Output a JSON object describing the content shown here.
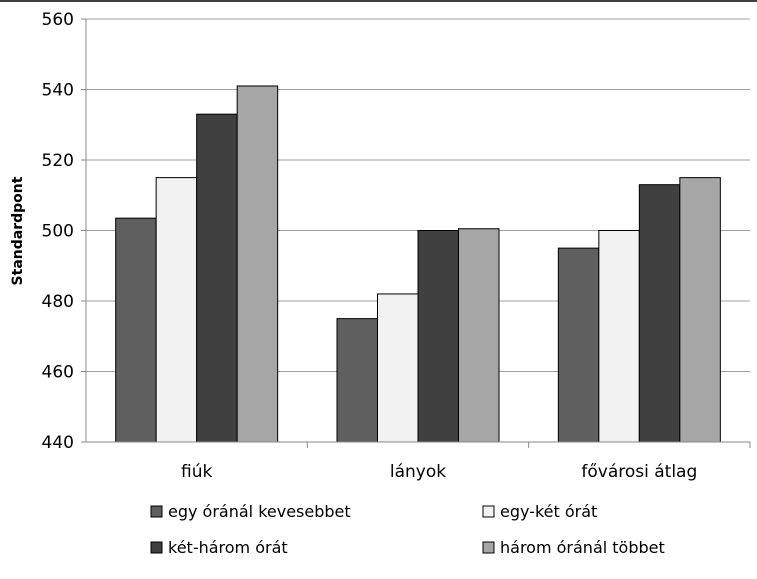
{
  "chart_data": {
    "type": "bar",
    "title": "",
    "xlabel": "",
    "ylabel": "Standardpont",
    "ylim": [
      440,
      560
    ],
    "yticks": [
      440,
      460,
      480,
      500,
      520,
      540,
      560
    ],
    "grid": true,
    "legend_position": "bottom",
    "categories": [
      "fiúk",
      "lányok",
      "fővárosi átlag"
    ],
    "series": [
      {
        "name": "egy óránál kevesebbet",
        "color": "#5f5f5f",
        "values": [
          503.5,
          475,
          495
        ]
      },
      {
        "name": "egy-két órát",
        "color": "#f2f2f2",
        "values": [
          515,
          482,
          500
        ]
      },
      {
        "name": "két-három órát",
        "color": "#404040",
        "values": [
          533,
          500,
          513
        ]
      },
      {
        "name": "három óránál többet",
        "color": "#a6a6a6",
        "values": [
          541,
          500.5,
          515
        ]
      }
    ]
  }
}
